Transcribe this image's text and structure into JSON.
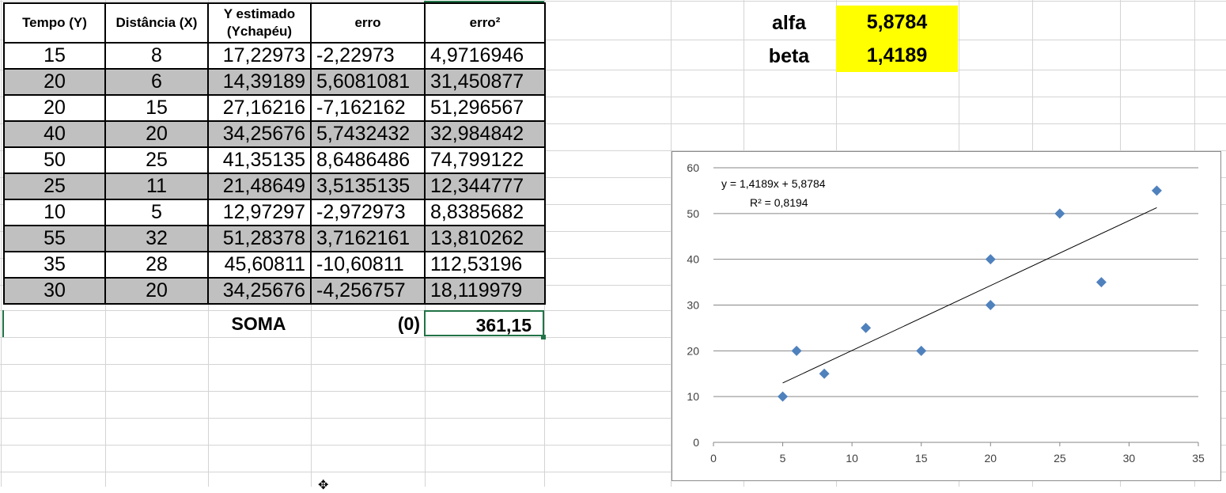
{
  "table": {
    "headers": [
      "Tempo (Y)",
      "Distância (X)",
      "Y estimado (Ychapéu)",
      "erro",
      "erro²"
    ],
    "rows": [
      [
        "15",
        "8",
        "17,22973",
        "-2,22973",
        "4,9716946"
      ],
      [
        "20",
        "6",
        "14,39189",
        "5,6081081",
        "31,450877"
      ],
      [
        "20",
        "15",
        "27,16216",
        "-7,162162",
        "51,296567"
      ],
      [
        "40",
        "20",
        "34,25676",
        "5,7432432",
        "32,984842"
      ],
      [
        "50",
        "25",
        "41,35135",
        "8,6486486",
        "74,799122"
      ],
      [
        "25",
        "11",
        "21,48649",
        "3,5135135",
        "12,344777"
      ],
      [
        "10",
        "5",
        "12,97297",
        "-2,972973",
        "8,8385682"
      ],
      [
        "55",
        "32",
        "51,28378",
        "3,7162161",
        "13,810262"
      ],
      [
        "35",
        "28",
        "45,60811",
        "-10,60811",
        "112,53196"
      ],
      [
        "30",
        "20",
        "34,25676",
        "-4,256757",
        "18,119979"
      ]
    ],
    "soma_label": "SOMA",
    "soma_erro": "(0)",
    "soma_erro2": "361,15"
  },
  "params": {
    "alfa_label": "alfa",
    "alfa_value": "5,8784",
    "beta_label": "beta",
    "beta_value": "1,4189"
  },
  "colors": {
    "row_alt": "#c0c0c0",
    "highlight": "#ffff00",
    "marker": "#4f81bd",
    "selection": "#217346"
  },
  "cursor_icon": "move-cursor-icon",
  "chart_data": {
    "type": "scatter",
    "x": [
      8,
      6,
      15,
      20,
      25,
      11,
      5,
      32,
      28,
      20
    ],
    "y": [
      15,
      20,
      20,
      40,
      50,
      25,
      10,
      55,
      35,
      30
    ],
    "xlim": [
      0,
      35
    ],
    "ylim": [
      0,
      60
    ],
    "xticks": [
      "0",
      "5",
      "10",
      "15",
      "20",
      "25",
      "30",
      "35"
    ],
    "yticks": [
      "0",
      "10",
      "20",
      "30",
      "40",
      "50",
      "60"
    ],
    "trendline": {
      "slope": 1.4189,
      "intercept": 5.8784,
      "x_range": [
        5,
        32
      ],
      "equation": "y = 1,4189x + 5,8784",
      "r2": "R² = 0,8194"
    },
    "grid": "horizontal",
    "title": "",
    "xlabel": "",
    "ylabel": ""
  }
}
